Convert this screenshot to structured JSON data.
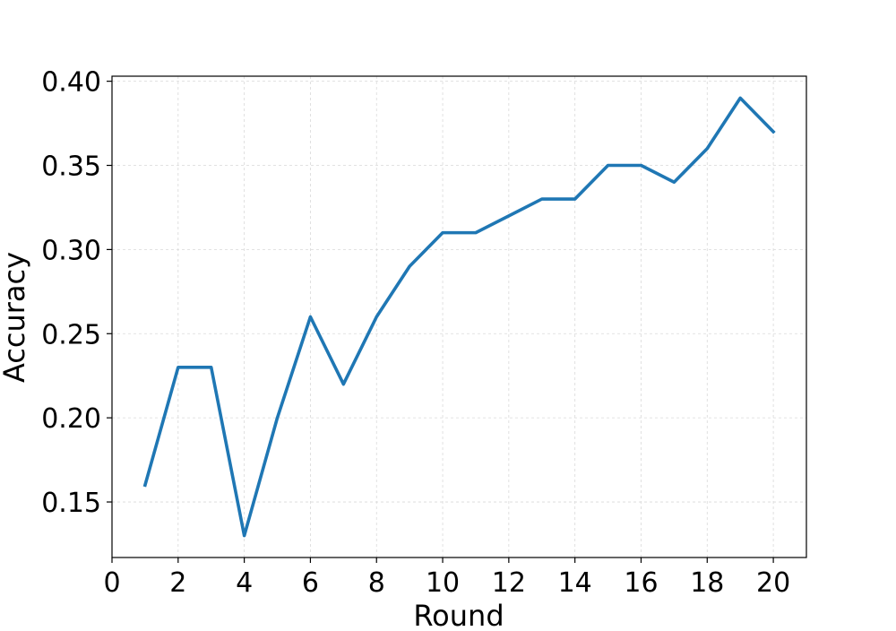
{
  "chart_data": {
    "type": "line",
    "title": "",
    "xlabel": "Round",
    "ylabel": "Accuracy",
    "xlim": [
      0,
      21
    ],
    "ylim": [
      0.117,
      0.403
    ],
    "xticks": [
      0,
      2,
      4,
      6,
      8,
      10,
      12,
      14,
      16,
      18,
      20
    ],
    "yticks": [
      0.15,
      0.2,
      0.25,
      0.3,
      0.35,
      0.4
    ],
    "ytick_labels": [
      "0.15",
      "0.20",
      "0.25",
      "0.30",
      "0.35",
      "0.40"
    ],
    "grid": true,
    "series": [
      {
        "color": "#1f77b4",
        "x": [
          1,
          2,
          3,
          4,
          5,
          6,
          7,
          8,
          9,
          10,
          11,
          12,
          13,
          14,
          15,
          16,
          17,
          18,
          19,
          20
        ],
        "y": [
          0.16,
          0.23,
          0.23,
          0.13,
          0.2,
          0.26,
          0.22,
          0.26,
          0.29,
          0.31,
          0.31,
          0.32,
          0.33,
          0.33,
          0.35,
          0.35,
          0.34,
          0.36,
          0.39,
          0.37
        ]
      }
    ]
  }
}
